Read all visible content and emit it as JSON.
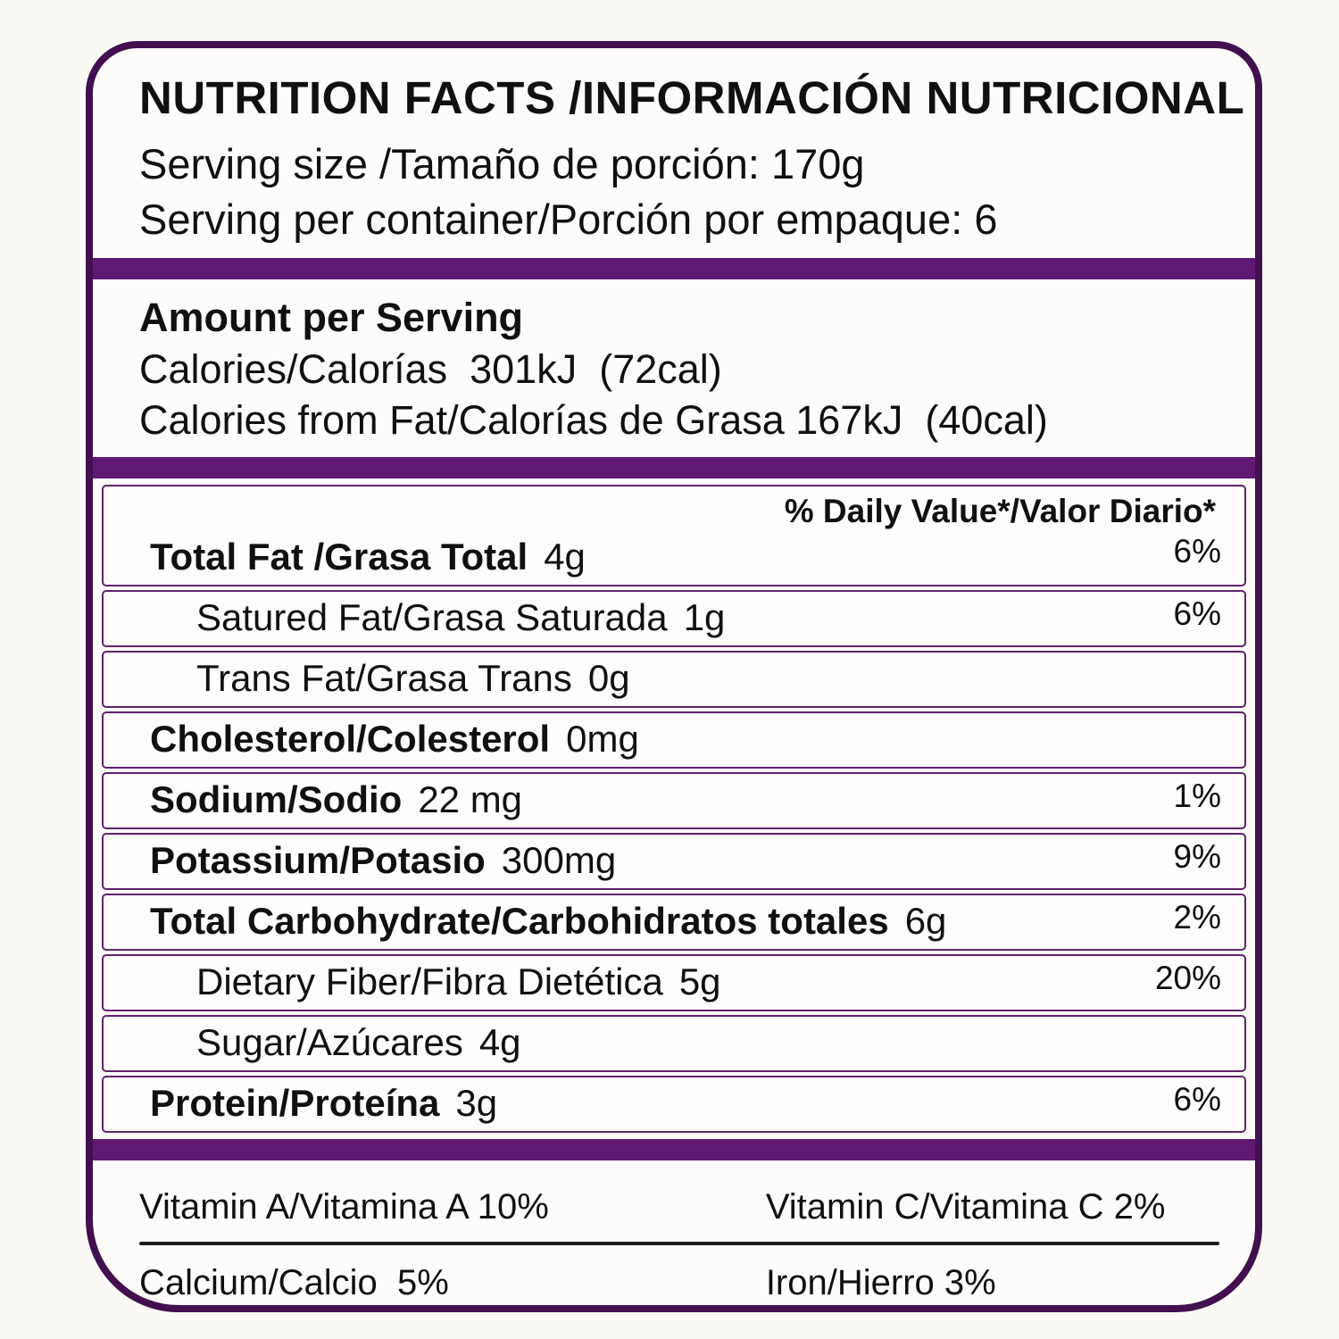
{
  "colors": {
    "outer_border": "#42104e",
    "section_bar": "#5e1a73",
    "row_border": "#61216d",
    "vitamin_divider": "#1b1b1b",
    "text": "#101010",
    "background": "#fdfcfa"
  },
  "header": {
    "title": "NUTRITION FACTS /INFORMACIÓN NUTRICIONAL",
    "serving_size": "Serving size /Tamaño de porción: 170g",
    "servings_per_container": "Serving per container/Porción por empaque: 6"
  },
  "calories_section": {
    "heading": "Amount per Serving",
    "calories": "Calories/Calorías  301kJ  (72cal)",
    "calories_from_fat": "Calories from Fat/Calorías de Grasa 167kJ  (40cal)"
  },
  "daily_value_header": "% Daily Value*/Valor Diario*",
  "nutrients": [
    {
      "name": "Total Fat /Grasa Total",
      "amount": "4g",
      "dv": "6%",
      "style": "bold",
      "indent": false
    },
    {
      "name": "Satured Fat/Grasa Saturada",
      "amount": "1g",
      "dv": "6%",
      "style": "regular",
      "indent": true
    },
    {
      "name": "Trans Fat/Grasa Trans",
      "amount": "0g",
      "dv": "",
      "style": "regular",
      "indent": true
    },
    {
      "name": "Cholesterol/Colesterol",
      "amount": "0mg",
      "dv": "",
      "style": "bold",
      "indent": false
    },
    {
      "name": "Sodium/Sodio",
      "amount": "22 mg",
      "dv": "1%",
      "style": "bold",
      "indent": false
    },
    {
      "name": "Potassium/Potasio",
      "amount": "300mg",
      "dv": "9%",
      "style": "bold",
      "indent": false
    },
    {
      "name": "Total Carbohydrate/Carbohidratos totales",
      "amount": "6g",
      "dv": "2%",
      "style": "bold",
      "indent": false
    },
    {
      "name": "Dietary Fiber/Fibra Dietética",
      "amount": "5g",
      "dv": "20%",
      "style": "regular",
      "indent": true
    },
    {
      "name": "Sugar/Azúcares",
      "amount": "4g",
      "dv": "",
      "style": "regular",
      "indent": true
    },
    {
      "name": "Protein/Proteína",
      "amount": "3g",
      "dv": "6%",
      "style": "bold",
      "indent": false
    }
  ],
  "micronutrients": {
    "rows": [
      {
        "left": "Vitamin A/Vitamina A 10%",
        "right": "Vitamin C/Vitamina C 2%"
      },
      {
        "left": "Calcium/Calcio  5%",
        "right": "Iron/Hierro 3%"
      }
    ]
  }
}
